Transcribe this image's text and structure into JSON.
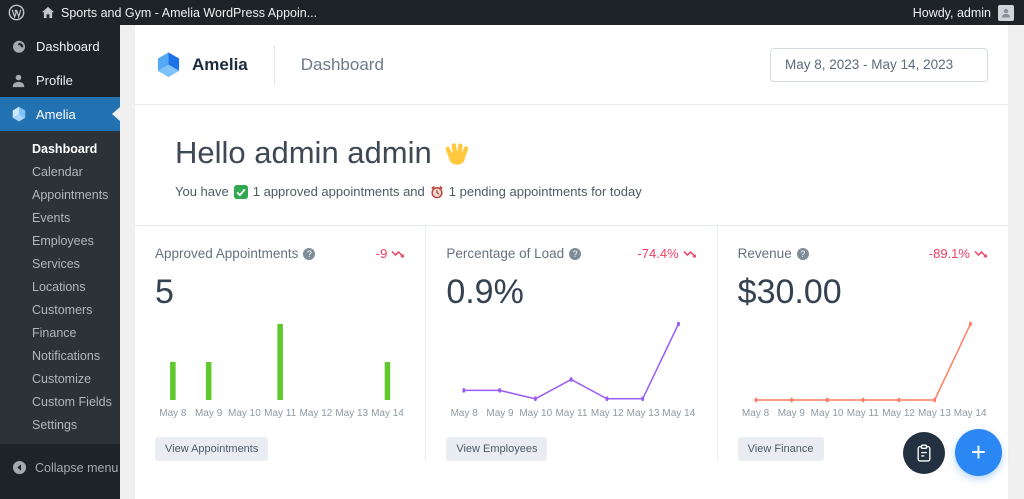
{
  "admin_bar": {
    "site_title": "Sports and Gym - Amelia WordPress Appoin...",
    "howdy": "Howdy, admin"
  },
  "sidebar": {
    "items": [
      {
        "label": "Dashboard",
        "icon": "dashboard-gauge-icon"
      },
      {
        "label": "Profile",
        "icon": "user-icon"
      },
      {
        "label": "Amelia",
        "icon": "amelia-logo-icon",
        "active": true
      }
    ],
    "submenu": [
      {
        "label": "Dashboard",
        "active": true
      },
      {
        "label": "Calendar"
      },
      {
        "label": "Appointments"
      },
      {
        "label": "Events"
      },
      {
        "label": "Employees"
      },
      {
        "label": "Services"
      },
      {
        "label": "Locations"
      },
      {
        "label": "Customers"
      },
      {
        "label": "Finance"
      },
      {
        "label": "Notifications"
      },
      {
        "label": "Customize"
      },
      {
        "label": "Custom Fields"
      },
      {
        "label": "Settings"
      }
    ],
    "collapse_label": "Collapse menu"
  },
  "header": {
    "brand": "Amelia",
    "page_title": "Dashboard",
    "date_range": "May 8, 2023 - May 14, 2023"
  },
  "hello": {
    "title": "Hello admin admin",
    "wave_emoji": "👋",
    "check_emoji": "✅",
    "clock_emoji": "⏰",
    "subtitle_before": "You have",
    "subtitle_approved": "1 approved appointments and",
    "subtitle_pending": "1 pending appointments for today"
  },
  "cards": [
    {
      "title": "Approved Appointments",
      "trend": "-9",
      "value": "5",
      "button_label": "View Appointments",
      "accent": "#5ec82d"
    },
    {
      "title": "Percentage of Load",
      "trend": "-74.4%",
      "value": "0.9%",
      "button_label": "View Employees",
      "accent": "#9a5cf5"
    },
    {
      "title": "Revenue",
      "trend": "-89.1%",
      "value": "$30.00",
      "button_label": "View Finance",
      "accent": "#ff7f62"
    }
  ],
  "chart_data": [
    {
      "type": "bar",
      "title": "Approved Appointments per day",
      "categories": [
        "May 8",
        "May 9",
        "May 10",
        "May 11",
        "May 12",
        "May 13",
        "May 14"
      ],
      "values": [
        1,
        1,
        0,
        2,
        0,
        0,
        1
      ],
      "color": "#5ec82d",
      "ylim": [
        0,
        2
      ],
      "grid": false,
      "legend": false
    },
    {
      "type": "line",
      "title": "Percentage of Load per day",
      "categories": [
        "May 8",
        "May 9",
        "May 10",
        "May 11",
        "May 12",
        "May 13",
        "May 14"
      ],
      "values": [
        0.8,
        0.8,
        0.1,
        1.7,
        0.1,
        0.1,
        6.3
      ],
      "color": "#9a5cf5",
      "ylim": [
        0,
        6.5
      ],
      "grid": false,
      "legend": false
    },
    {
      "type": "line",
      "title": "Revenue per day",
      "categories": [
        "May 8",
        "May 9",
        "May 10",
        "May 11",
        "May 12",
        "May 13",
        "May 14"
      ],
      "values": [
        0,
        0,
        0,
        0,
        0,
        0,
        30
      ],
      "color": "#ff7f62",
      "ylim": [
        0,
        30
      ],
      "grid": false,
      "legend": false
    }
  ],
  "colors": {
    "wp_selected_blue": "#2271b1",
    "trend_down_red": "#ee3d60",
    "bar_green": "#5ec82d",
    "line_purple": "#9a5cf5",
    "line_orange": "#ff7f62",
    "fab_dark": "#22303f",
    "fab_blue": "#2b87f3"
  }
}
